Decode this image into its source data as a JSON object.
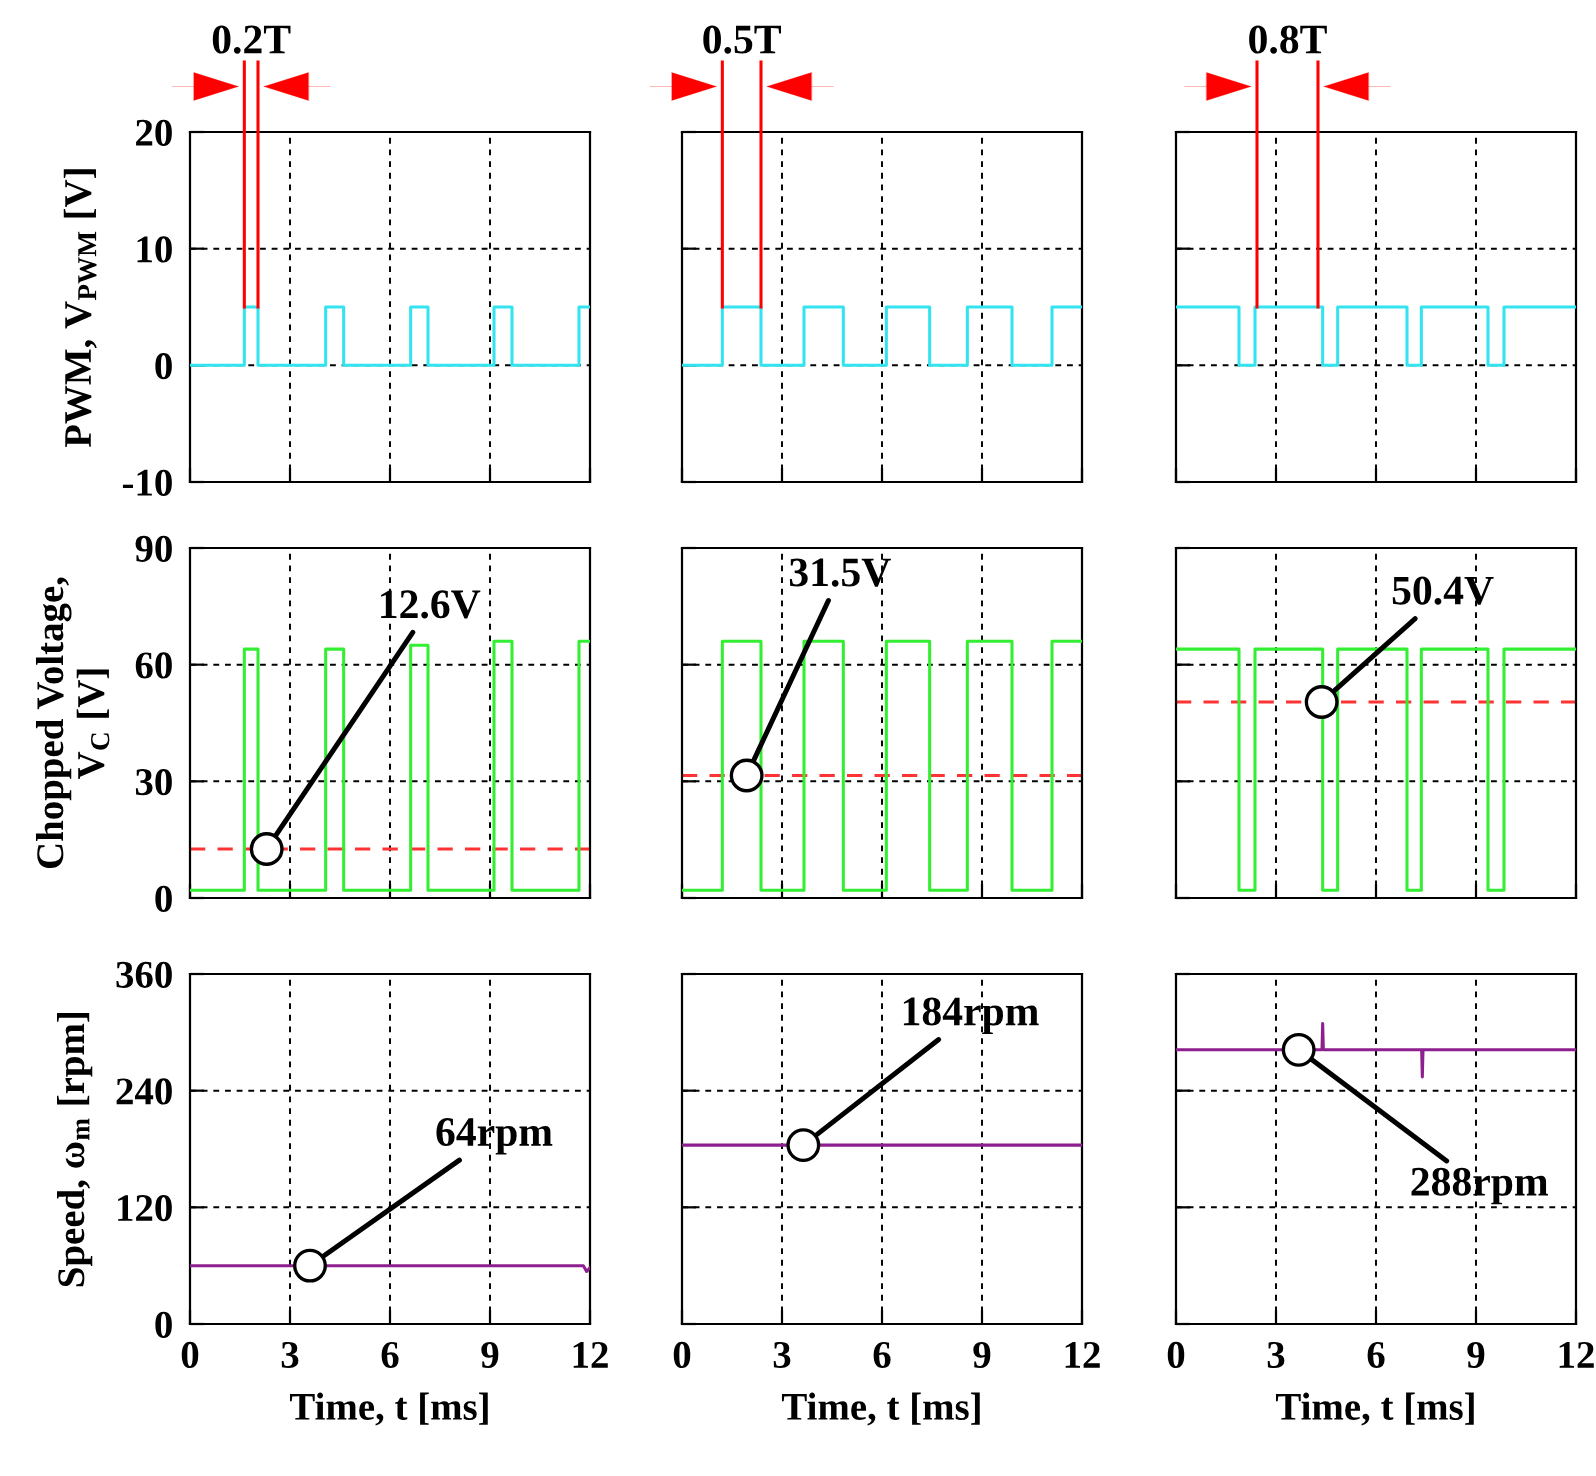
{
  "chart_data": [
    {
      "type": "line",
      "xlim": [
        0,
        12
      ],
      "ylim": [
        -10,
        20
      ],
      "xticks": [
        0,
        3,
        6,
        9,
        12
      ],
      "yticks": [
        -10,
        0,
        10,
        20
      ],
      "tick_labels": "y",
      "grid": true,
      "ylabel": "PWM, V$_{PWM}$ [V]",
      "ref_lines": [
        {
          "axis": "x",
          "value": 1.63,
          "color": "#ff0000"
        },
        {
          "axis": "x",
          "value": 2.04,
          "color": "#ff0000"
        }
      ],
      "annotations": [
        "0.2T"
      ],
      "series": [
        {
          "color": "#33e3ef",
          "x": [
            0,
            1.63,
            1.63,
            2.04,
            2.04,
            4.07,
            4.07,
            4.61,
            4.61,
            6.62,
            6.62,
            7.14,
            7.14,
            9.12,
            9.12,
            9.66,
            9.66,
            11.67,
            11.67,
            12
          ],
          "values": [
            0,
            0,
            5,
            5,
            0,
            0,
            5,
            5,
            0,
            0,
            5,
            5,
            0,
            0,
            5,
            5,
            0,
            0,
            5,
            5
          ]
        }
      ]
    },
    {
      "type": "line",
      "xlim": [
        0,
        12
      ],
      "ylim": [
        -10,
        20
      ],
      "xticks": [
        0,
        3,
        6,
        9,
        12
      ],
      "yticks": [
        -10,
        0,
        10,
        20
      ],
      "tick_labels": false,
      "grid": true,
      "ref_lines": [
        {
          "axis": "x",
          "value": 1.21,
          "color": "#ff0000"
        },
        {
          "axis": "x",
          "value": 2.37,
          "color": "#ff0000"
        }
      ],
      "annotations": [
        "0.5T"
      ],
      "series": [
        {
          "color": "#33e3ef",
          "x": [
            0,
            1.21,
            1.21,
            2.37,
            2.37,
            3.66,
            3.66,
            4.84,
            4.84,
            6.13,
            6.13,
            7.43,
            7.43,
            8.56,
            8.56,
            9.9,
            9.9,
            11.1,
            11.1,
            12
          ],
          "values": [
            0,
            0,
            5,
            5,
            0,
            0,
            5,
            5,
            0,
            0,
            5,
            5,
            0,
            0,
            5,
            5,
            0,
            0,
            5,
            5
          ]
        }
      ]
    },
    {
      "type": "line",
      "xlim": [
        0,
        12
      ],
      "ylim": [
        -10,
        20
      ],
      "xticks": [
        0,
        3,
        6,
        9,
        12
      ],
      "yticks": [
        -10,
        0,
        10,
        20
      ],
      "tick_labels": false,
      "grid": true,
      "ref_lines": [
        {
          "axis": "x",
          "value": 2.43,
          "color": "#ff0000"
        },
        {
          "axis": "x",
          "value": 4.26,
          "color": "#ff0000"
        }
      ],
      "annotations": [
        "0.8T"
      ],
      "series": [
        {
          "color": "#33e3ef",
          "x": [
            0,
            1.89,
            1.89,
            2.37,
            2.37,
            4.4,
            4.4,
            4.85,
            4.85,
            6.93,
            6.93,
            7.36,
            7.36,
            9.36,
            9.36,
            9.84,
            9.84,
            12
          ],
          "values": [
            5,
            5,
            0,
            0,
            5,
            5,
            0,
            0,
            5,
            5,
            0,
            0,
            5,
            5,
            0,
            0,
            5,
            5
          ]
        }
      ]
    },
    {
      "type": "line",
      "xlim": [
        0,
        12
      ],
      "ylim": [
        0,
        90
      ],
      "xticks": [
        0,
        3,
        6,
        9,
        12
      ],
      "yticks": [
        0,
        30,
        60,
        90
      ],
      "tick_labels": "y",
      "grid": true,
      "ylabel": "Chopped Voltage,\nV$_{C}$ [V]",
      "ref_lines": [
        {
          "axis": "y",
          "value": 12.6,
          "color": "#ff3333",
          "line_style": "dashed"
        }
      ],
      "annotations": [
        {
          "text": "12.6V",
          "x": 2.3,
          "y": 12.6
        }
      ],
      "series": [
        {
          "color": "#33ee33",
          "x": [
            0,
            1.63,
            1.63,
            2.04,
            2.04,
            4.07,
            4.07,
            4.61,
            4.61,
            6.62,
            6.62,
            7.14,
            7.14,
            9.12,
            9.12,
            9.66,
            9.66,
            11.67,
            11.67,
            12
          ],
          "values": [
            2,
            2,
            64,
            64,
            2,
            2,
            64,
            64,
            2,
            2,
            65,
            65,
            2,
            2,
            66,
            66,
            2,
            2,
            66,
            66
          ]
        }
      ]
    },
    {
      "type": "line",
      "xlim": [
        0,
        12
      ],
      "ylim": [
        0,
        90
      ],
      "xticks": [
        0,
        3,
        6,
        9,
        12
      ],
      "yticks": [
        0,
        30,
        60,
        90
      ],
      "tick_labels": false,
      "grid": true,
      "ref_lines": [
        {
          "axis": "y",
          "value": 31.5,
          "color": "#ff3333",
          "line_style": "dashed"
        }
      ],
      "annotations": [
        {
          "text": "31.5V",
          "x": 1.94,
          "y": 31.5
        }
      ],
      "series": [
        {
          "color": "#33ee33",
          "x": [
            0,
            1.21,
            1.21,
            2.37,
            2.37,
            3.66,
            3.66,
            4.84,
            4.84,
            6.13,
            6.13,
            7.43,
            7.43,
            8.56,
            8.56,
            9.9,
            9.9,
            11.1,
            11.1,
            12
          ],
          "values": [
            2,
            2,
            66,
            66,
            2,
            2,
            66,
            66,
            2,
            2,
            66,
            66,
            2,
            2,
            66,
            66,
            2,
            2,
            66,
            66
          ]
        }
      ]
    },
    {
      "type": "line",
      "xlim": [
        0,
        12
      ],
      "ylim": [
        0,
        90
      ],
      "xticks": [
        0,
        3,
        6,
        9,
        12
      ],
      "yticks": [
        0,
        30,
        60,
        90
      ],
      "tick_labels": false,
      "grid": true,
      "ref_lines": [
        {
          "axis": "y",
          "value": 50.4,
          "color": "#ff3333",
          "line_style": "dashed"
        }
      ],
      "annotations": [
        {
          "text": "50.4V",
          "x": 4.37,
          "y": 50.4
        }
      ],
      "series": [
        {
          "color": "#33ee33",
          "x": [
            0,
            1.89,
            1.89,
            2.37,
            2.37,
            4.4,
            4.4,
            4.85,
            4.85,
            6.93,
            6.93,
            7.36,
            7.36,
            9.36,
            9.36,
            9.84,
            9.84,
            12
          ],
          "values": [
            64,
            64,
            2,
            2,
            64,
            64,
            2,
            2,
            64,
            64,
            2,
            2,
            64,
            64,
            2,
            2,
            64,
            64
          ]
        }
      ]
    },
    {
      "type": "line",
      "xlim": [
        0,
        12
      ],
      "ylim": [
        0,
        360
      ],
      "xticks": [
        0,
        3,
        6,
        9,
        12
      ],
      "yticks": [
        0,
        120,
        240,
        360
      ],
      "grid": true,
      "ylabel": "Speed, ω$_{m}$ [rpm]",
      "xlabel": "Time, t [ms]",
      "annotations": [
        {
          "text": "64rpm",
          "x": 3.6,
          "y": 60
        }
      ],
      "series": [
        {
          "color": "#8e1f8e",
          "x": [
            0,
            11.8,
            11.9,
            12
          ],
          "values": [
            60,
            60,
            54,
            58
          ]
        }
      ]
    },
    {
      "type": "line",
      "xlim": [
        0,
        12
      ],
      "ylim": [
        0,
        360
      ],
      "xticks": [
        0,
        3,
        6,
        9,
        12
      ],
      "yticks": [
        0,
        120,
        240,
        360
      ],
      "tick_labels": "x",
      "grid": true,
      "xlabel": "Time, t [ms]",
      "annotations": [
        {
          "text": "184rpm",
          "x": 3.64,
          "y": 184
        }
      ],
      "series": [
        {
          "color": "#8e1f8e",
          "x": [
            0,
            12
          ],
          "values": [
            184,
            184
          ]
        }
      ]
    },
    {
      "type": "line",
      "xlim": [
        0,
        12
      ],
      "ylim": [
        0,
        360
      ],
      "xticks": [
        0,
        3,
        6,
        9,
        12
      ],
      "yticks": [
        0,
        120,
        240,
        360
      ],
      "tick_labels": "x",
      "grid": true,
      "xlabel": "Time, t [ms]",
      "annotations": [
        {
          "text": "288rpm",
          "x": 3.68,
          "y": 282
        }
      ],
      "series": [
        {
          "color": "#8e1f8e",
          "x": [
            0,
            4.38,
            4.4,
            4.42,
            7.37,
            7.39,
            7.41,
            12
          ],
          "values": [
            282,
            282,
            309,
            282,
            282,
            254,
            282,
            282
          ]
        }
      ]
    }
  ]
}
